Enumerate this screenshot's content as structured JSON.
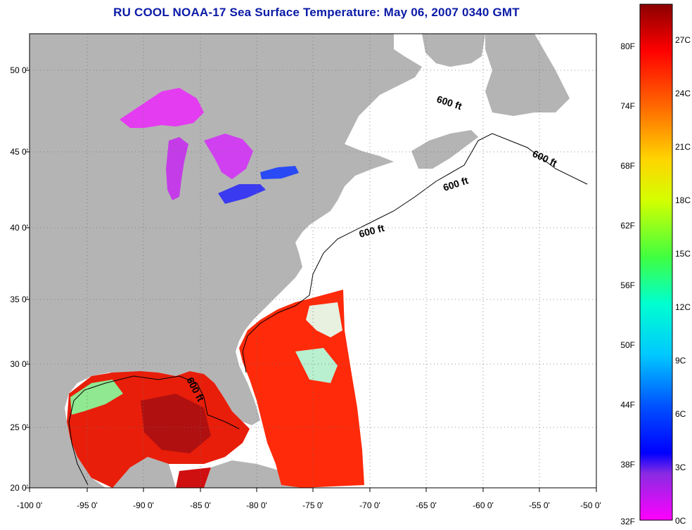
{
  "title": "RU COOL  NOAA-17  Sea Surface Temperature:  May 06, 2007 0340 GMT",
  "map": {
    "lon_range": [
      -100,
      -50
    ],
    "lat_range": [
      20,
      52.5
    ],
    "lon_ticks": [
      "-100 0'",
      "-95 0'",
      "-90 0'",
      "-85 0'",
      "-80 0'",
      "-75 0'",
      "-70 0'",
      "-65 0'",
      "-60 0'",
      "-55 0'",
      "-50 0'"
    ],
    "lat_ticks": [
      "20 0'",
      "25 0'",
      "30 0'",
      "35 0'",
      "40 0'",
      "45 0'",
      "50 0'"
    ],
    "contour_labels": [
      "600 ft",
      "600 ft",
      "600 ft",
      "600 ft",
      "600 ft"
    ],
    "land_color": "#b4b4b4",
    "ocean_color": "#ffffff"
  },
  "colorbar": {
    "fahrenheit": [
      "80F",
      "74F",
      "68F",
      "62F",
      "56F",
      "50F",
      "44F",
      "38F",
      "32F"
    ],
    "celsius": [
      "27C",
      "24C",
      "21C",
      "18C",
      "15C",
      "12C",
      "9C",
      "6C",
      "3C",
      "0C"
    ],
    "colors_top_to_bottom": [
      "#8b0000",
      "#ff0000",
      "#ff6a00",
      "#ffd400",
      "#d4ff00",
      "#40ff40",
      "#00ffd0",
      "#00c8ff",
      "#0050ff",
      "#0000ff",
      "#8a2be2",
      "#ff00ff"
    ]
  }
}
